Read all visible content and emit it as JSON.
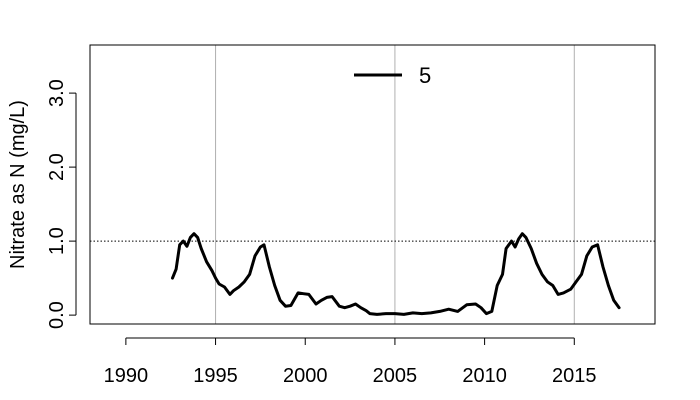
{
  "chart_data": {
    "type": "line",
    "ylabel": "Nitrate as N (mg/L)",
    "xlim": [
      1988.0,
      2019.5
    ],
    "ylim": [
      -0.12,
      3.65
    ],
    "x_ticks": [
      1990,
      1995,
      2000,
      2005,
      2010,
      2015
    ],
    "x_tick_labels": [
      "1990",
      "1995",
      "2000",
      "2005",
      "2010",
      "2015"
    ],
    "y_ticks": [
      0.0,
      1.0,
      2.0,
      3.0
    ],
    "y_tick_labels": [
      "0.0",
      "1.0",
      "2.0",
      "3.0"
    ],
    "vertical_gridlines": [
      1995,
      2005,
      2015
    ],
    "reference_line": {
      "y": 1.0,
      "style": "dotted"
    },
    "legend": {
      "position": "top-center",
      "label": "5"
    },
    "series": [
      {
        "name": "5",
        "color": "#000000",
        "x": [
          1992.6,
          1992.8,
          1993.0,
          1993.2,
          1993.4,
          1993.6,
          1993.8,
          1994.0,
          1994.2,
          1994.5,
          1994.8,
          1995.0,
          1995.2,
          1995.5,
          1995.8,
          1996.0,
          1996.3,
          1996.6,
          1996.9,
          1997.2,
          1997.5,
          1997.7,
          1998.0,
          1998.3,
          1998.6,
          1998.9,
          1999.2,
          1999.6,
          1999.9,
          2000.2,
          2000.6,
          2000.9,
          2001.2,
          2001.5,
          2001.9,
          2002.2,
          2002.5,
          2002.8,
          2003.1,
          2003.4,
          2003.6,
          2004.0,
          2004.5,
          2005.0,
          2005.5,
          2006.0,
          2006.5,
          2007.0,
          2007.5,
          2008.0,
          2008.5,
          2009.0,
          2009.5,
          2009.8,
          2010.1,
          2010.4,
          2010.7,
          2011.0,
          2011.2,
          2011.5,
          2011.7,
          2011.9,
          2012.1,
          2012.3,
          2012.6,
          2012.9,
          2013.2,
          2013.5,
          2013.8,
          2014.1,
          2014.4,
          2014.8,
          2015.1,
          2015.4,
          2015.7,
          2016.0,
          2016.3,
          2016.6,
          2016.9,
          2017.2,
          2017.5
        ],
        "y": [
          0.5,
          0.62,
          0.95,
          1.0,
          0.93,
          1.05,
          1.1,
          1.05,
          0.9,
          0.72,
          0.6,
          0.5,
          0.42,
          0.38,
          0.28,
          0.33,
          0.38,
          0.45,
          0.55,
          0.8,
          0.92,
          0.95,
          0.65,
          0.4,
          0.2,
          0.12,
          0.13,
          0.3,
          0.29,
          0.28,
          0.15,
          0.2,
          0.24,
          0.25,
          0.12,
          0.1,
          0.12,
          0.15,
          0.1,
          0.06,
          0.02,
          0.01,
          0.02,
          0.02,
          0.01,
          0.03,
          0.02,
          0.03,
          0.05,
          0.08,
          0.05,
          0.14,
          0.15,
          0.1,
          0.02,
          0.05,
          0.4,
          0.55,
          0.9,
          1.0,
          0.92,
          1.03,
          1.1,
          1.05,
          0.9,
          0.7,
          0.55,
          0.45,
          0.4,
          0.28,
          0.3,
          0.35,
          0.45,
          0.55,
          0.8,
          0.92,
          0.95,
          0.65,
          0.4,
          0.2,
          0.1
        ]
      }
    ]
  }
}
